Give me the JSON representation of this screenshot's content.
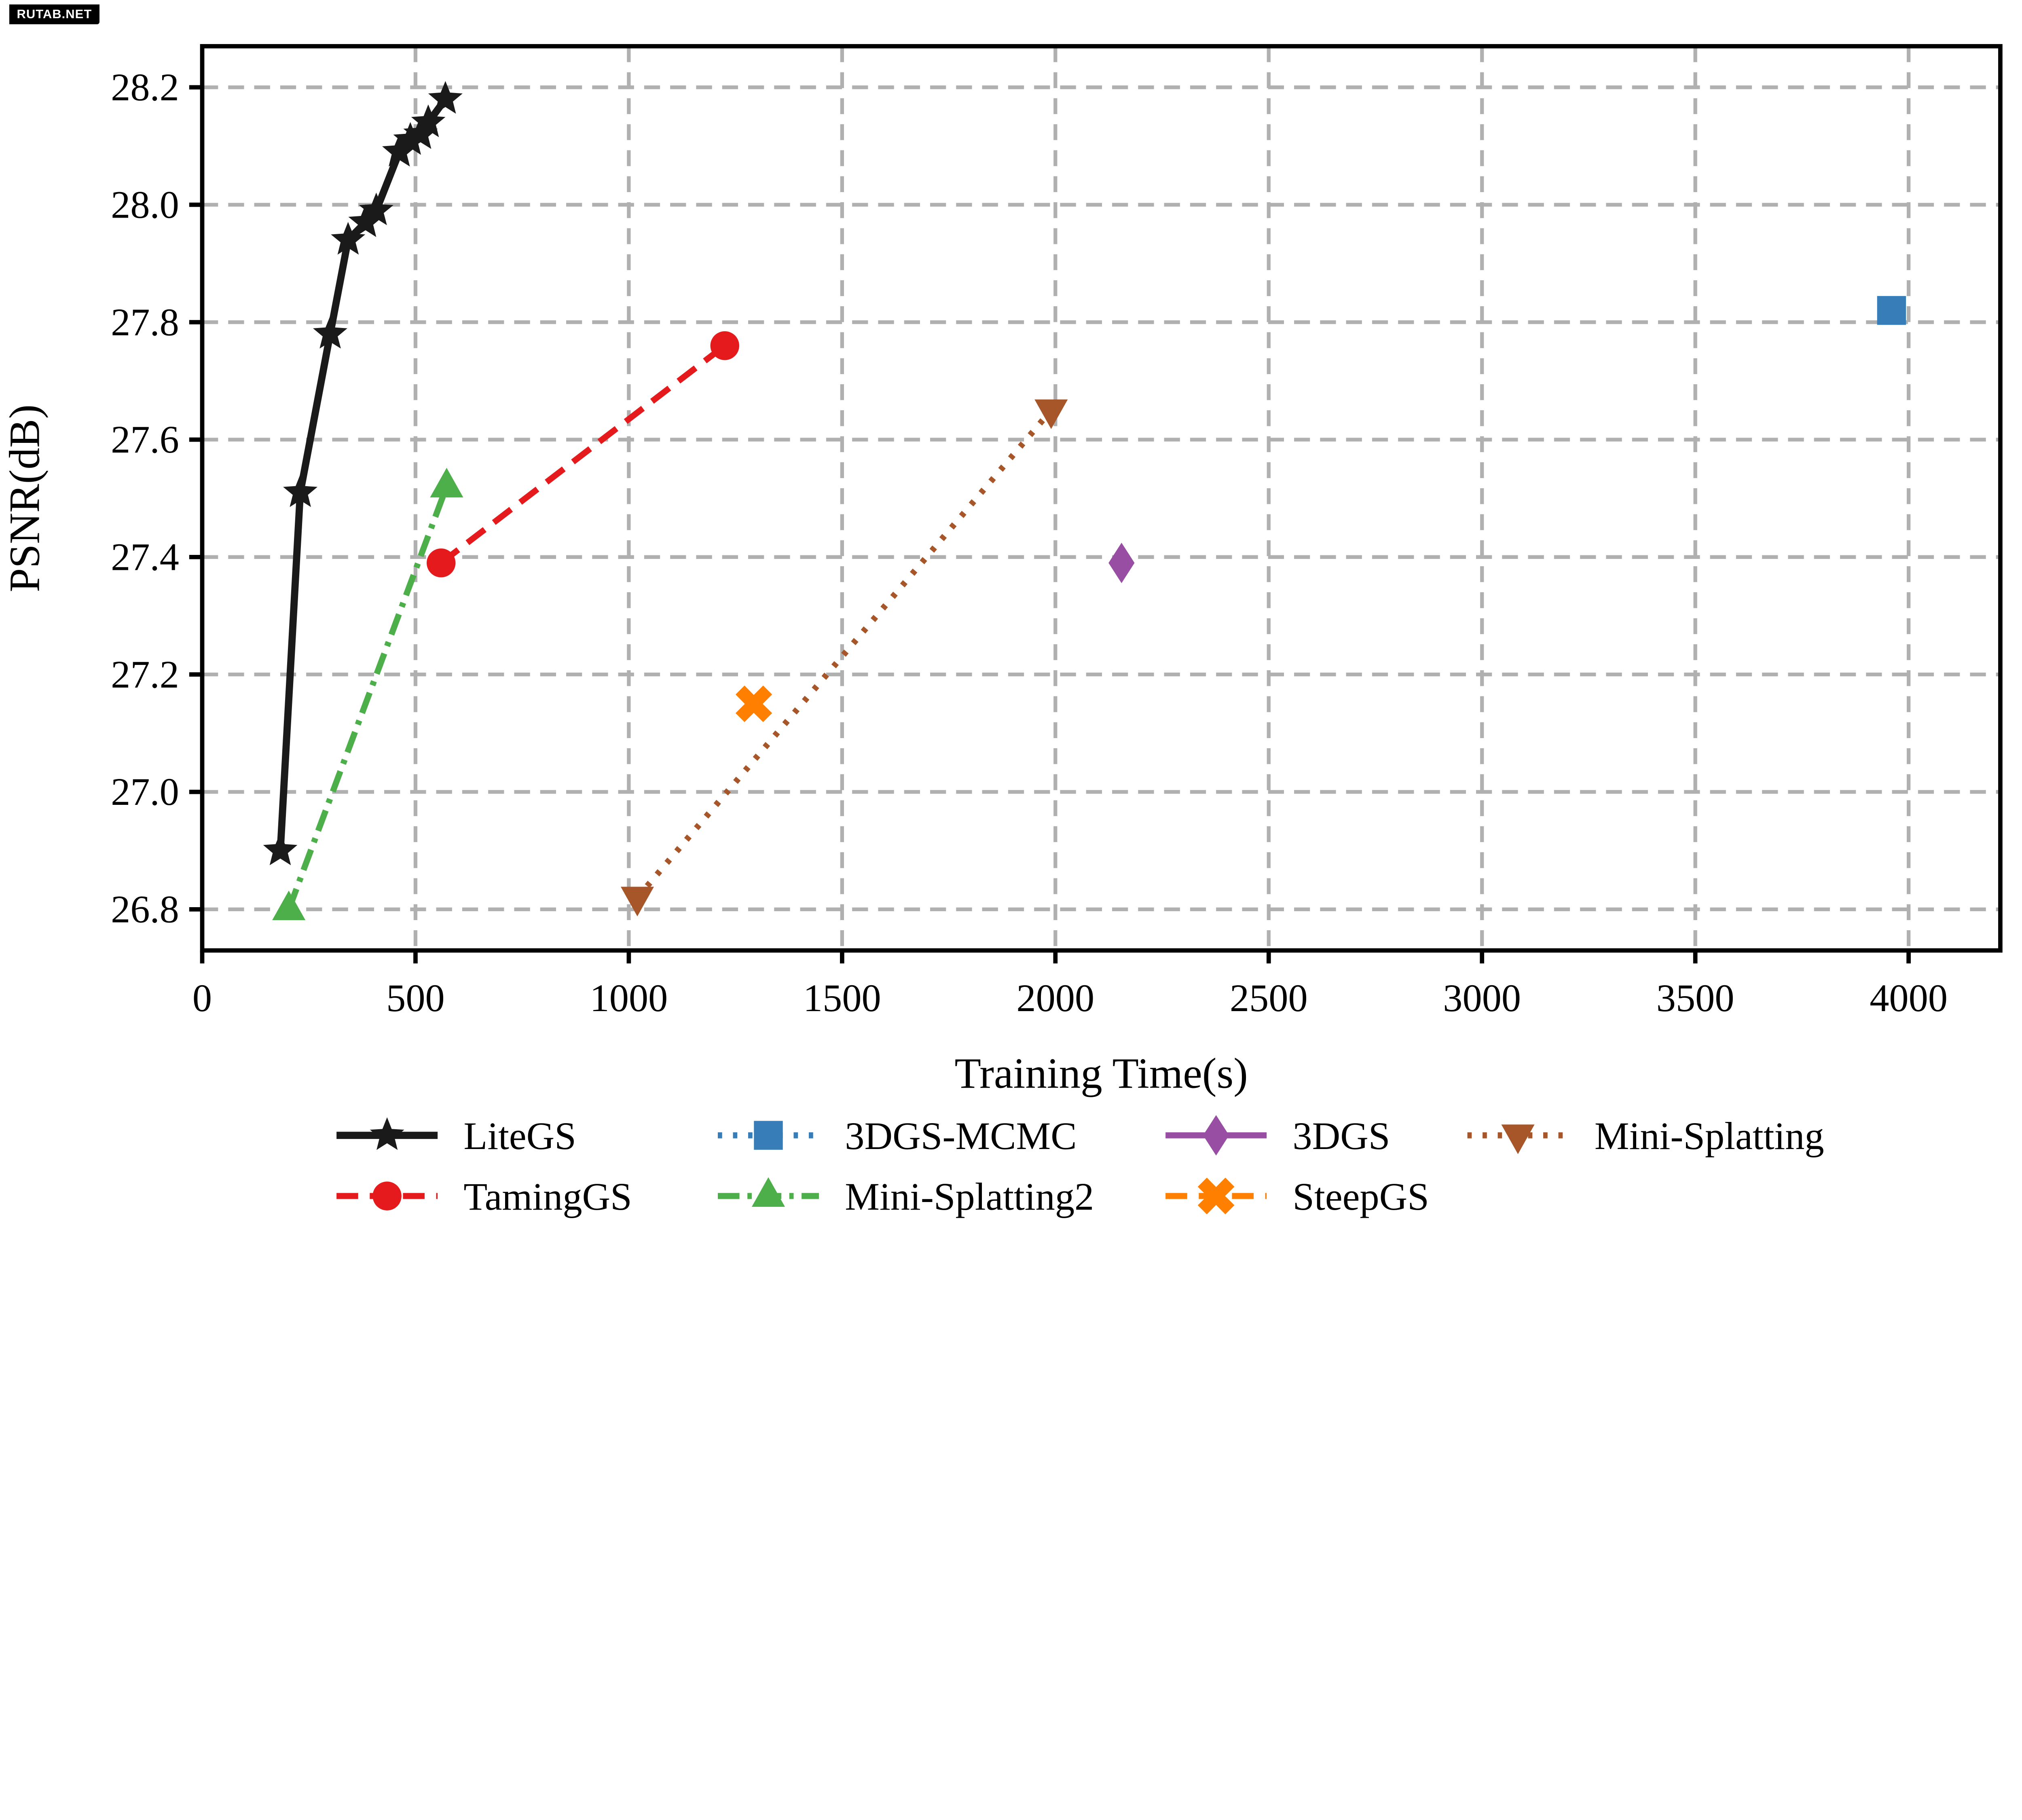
{
  "watermark": {
    "text": "RUTAB.NET",
    "bg": "#000000",
    "fg": "#ffffff"
  },
  "chart_data": {
    "type": "line",
    "title": "",
    "xlabel": "Training Time(s)",
    "ylabel": "PSNR(dB)",
    "xlim": [
      0,
      4215
    ],
    "ylim": [
      26.73,
      28.27
    ],
    "xticks": [
      0,
      500,
      1000,
      1500,
      2000,
      2500,
      3000,
      3500,
      4000
    ],
    "yticks": [
      26.8,
      27.0,
      27.2,
      27.4,
      27.6,
      27.8,
      28.0,
      28.2
    ],
    "grid": true,
    "grid_color": "#b0b0b0",
    "frame_color": "#000000",
    "legend_position": "below-chart, 4 columns, 2 rows, no frame",
    "series": [
      {
        "name": "LiteGS",
        "color": "#1a1a1a",
        "linestyle": "solid",
        "linewidth": 5,
        "marker": "star",
        "points": [
          [
            183,
            26.9
          ],
          [
            230,
            27.51
          ],
          [
            300,
            27.78
          ],
          [
            342,
            27.94
          ],
          [
            383,
            27.97
          ],
          [
            408,
            27.99
          ],
          [
            462,
            28.09
          ],
          [
            488,
            28.11
          ],
          [
            512,
            28.12
          ],
          [
            530,
            28.14
          ],
          [
            570,
            28.18
          ]
        ]
      },
      {
        "name": "TamingGS",
        "color": "#e41a1c",
        "linestyle": "dashed",
        "linewidth": 4.2,
        "marker": "circle",
        "points": [
          [
            560,
            27.39
          ],
          [
            1225,
            27.76
          ]
        ]
      },
      {
        "name": "3DGS-MCMC",
        "color": "#377eb8",
        "linestyle": "dotted",
        "linewidth": 4.2,
        "marker": "square",
        "points": [
          [
            3960,
            27.82
          ]
        ]
      },
      {
        "name": "Mini-Splatting2",
        "color": "#4daf4a",
        "linestyle": "dashdot",
        "linewidth": 4.2,
        "marker": "triangle-up",
        "points": [
          [
            203,
            26.8
          ],
          [
            573,
            27.52
          ]
        ]
      },
      {
        "name": "3DGS",
        "color": "#984ea3",
        "linestyle": "solid",
        "linewidth": 4.2,
        "marker": "diamond",
        "points": [
          [
            2155,
            27.39
          ]
        ]
      },
      {
        "name": "SteepGS",
        "color": "#ff7f00",
        "linestyle": "dashed",
        "linewidth": 4.2,
        "marker": "x",
        "points": [
          [
            1293,
            27.15
          ]
        ]
      },
      {
        "name": "Mini-Splatting",
        "color": "#a65628",
        "linestyle": "dotted",
        "linewidth": 4.2,
        "marker": "triangle-down",
        "points": [
          [
            1020,
            26.82
          ],
          [
            1990,
            27.65
          ]
        ]
      }
    ],
    "legend_order": [
      [
        "LiteGS",
        "3DGS-MCMC",
        "3DGS",
        "Mini-Splatting"
      ],
      [
        "TamingGS",
        "Mini-Splatting2",
        "SteepGS"
      ]
    ]
  }
}
